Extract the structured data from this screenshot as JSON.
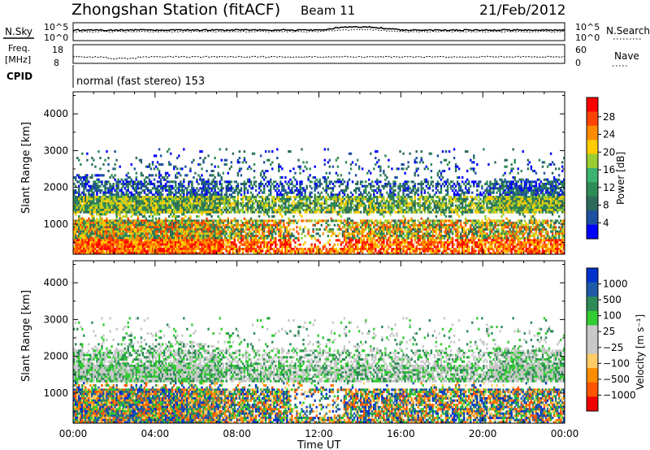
{
  "header": {
    "title": "Zhongshan Station (fitACF)",
    "beam": "Beam 11",
    "date": "21/Feb/2012"
  },
  "noise_panel": {
    "left_label": "N.Sky",
    "left_ticks": [
      "10^5",
      "10^0"
    ],
    "right_ticks": [
      "10^5",
      "10^0"
    ],
    "right_label": "N.Search"
  },
  "freq_panel": {
    "left_label_1": "Freq.",
    "left_label_2": "[MHz]",
    "left_ticks": [
      "18",
      "8"
    ],
    "right_ticks": [
      "60",
      "0"
    ],
    "right_label": "Nave"
  },
  "cpid_panel": {
    "label": "CPID",
    "text": "normal (fast stereo) 153"
  },
  "chart_data": [
    {
      "type": "heatmap",
      "name": "power",
      "ylabel": "Slant Range [km]",
      "yticks": [
        "4000",
        "3000",
        "2000",
        "1000"
      ],
      "xticks": [
        "00:00",
        "04:00",
        "08:00",
        "12:00",
        "16:00",
        "20:00",
        "00:00"
      ],
      "colorbar_label": "Power [dB]",
      "colorbar_ticks": [
        "28",
        "24",
        "20",
        "16",
        "12",
        "8",
        "4"
      ],
      "colorbar_colors": [
        "#ff0000",
        "#ff4400",
        "#ff8c00",
        "#ffcc00",
        "#9acd32",
        "#3cb371",
        "#2e8b57",
        "#2e6b5a",
        "#1e50a0",
        "#0000ff"
      ],
      "colorbar_range": [
        0,
        32
      ]
    },
    {
      "type": "heatmap",
      "name": "velocity",
      "ylabel": "Slant Range [km]",
      "yticks": [
        "4000",
        "3000",
        "2000",
        "1000"
      ],
      "xticks": [
        "00:00",
        "04:00",
        "08:00",
        "12:00",
        "16:00",
        "20:00",
        "00:00"
      ],
      "xlabel": "Time UT",
      "colorbar_label": "Velocity [m s⁻¹]",
      "colorbar_ticks": [
        "1000",
        "500",
        "100",
        "25",
        "−25",
        "−100",
        "−500",
        "−1000"
      ],
      "colorbar_colors": [
        "#0033cc",
        "#1e5aa8",
        "#2e8b57",
        "#33cc33",
        "#c8c8c8",
        "#c8c8c8",
        "#ffcc66",
        "#ff8c00",
        "#ff5500",
        "#ee0000"
      ]
    }
  ]
}
